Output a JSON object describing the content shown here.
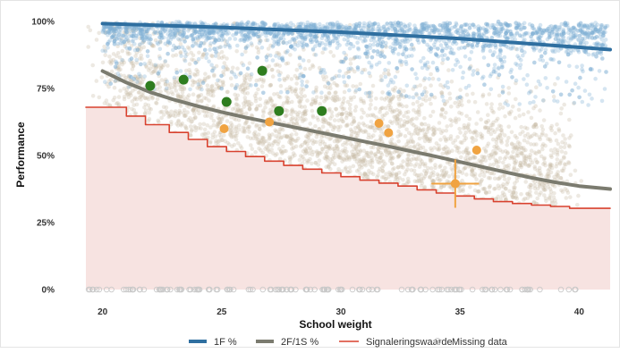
{
  "chart_data": {
    "type": "scatter",
    "title": "",
    "xlabel": "School weight",
    "ylabel": "Performance",
    "xlim": [
      19.3,
      41.3
    ],
    "ylim": [
      0,
      100
    ],
    "x_ticks": [
      20,
      25,
      30,
      35,
      40
    ],
    "y_ticks": [
      0,
      25,
      50,
      75,
      100
    ],
    "x_tick_labels": [
      "20",
      "25",
      "30",
      "35",
      "40"
    ],
    "y_tick_labels": [
      "0%",
      "25%",
      "50%",
      "75%",
      "100%"
    ],
    "grid": false,
    "legend_position": "bottom",
    "colors": {
      "blue": "#2f6fa0",
      "gray": "#7b7b6f",
      "red": "#d8412e",
      "green": "#2e7d1f",
      "orange": "#f0a341",
      "beige_points": "#c7bba4",
      "blue_points": "#7fb1d6",
      "pink_fill": "#f7e3e1"
    },
    "legend": [
      {
        "label": "1F %",
        "type": "line",
        "color": "#2f6fa0"
      },
      {
        "label": "2F/1S %",
        "type": "line",
        "color": "#7b7b6f"
      },
      {
        "label": "Signaleringswaarde",
        "type": "line",
        "color": "#d8412e"
      },
      {
        "label": "Missing data",
        "type": "circle",
        "color": "#cccccc"
      }
    ],
    "series": [
      {
        "name": "1F %",
        "type": "line",
        "color": "#2f6fa0",
        "x": [
          20,
          25,
          30,
          35,
          41.3
        ],
        "y": [
          99.2,
          97.8,
          96.0,
          93.6,
          89.5
        ]
      },
      {
        "name": "2F/1S %",
        "type": "line",
        "color": "#7b7b6f",
        "x": [
          20,
          21,
          22,
          23,
          24,
          25,
          26,
          27,
          28,
          29,
          30,
          31,
          32,
          33,
          34,
          35,
          36,
          37,
          38,
          39,
          40,
          41.3
        ],
        "y": [
          81.5,
          77.2,
          73.6,
          70.8,
          68.4,
          66.2,
          64.2,
          62.4,
          60.6,
          58.8,
          57.0,
          55.2,
          53.4,
          51.5,
          49.6,
          47.6,
          45.6,
          43.6,
          41.7,
          40.0,
          38.6,
          37.5
        ]
      },
      {
        "name": "Signaleringswaarde",
        "type": "step",
        "color": "#d8412e",
        "x": [
          19.3,
          21.0,
          21.0,
          21.8,
          21.8,
          22.8,
          22.8,
          23.6,
          23.6,
          24.4,
          24.4,
          25.2,
          25.2,
          26.0,
          26.0,
          26.8,
          26.8,
          27.6,
          27.6,
          28.4,
          28.4,
          29.2,
          29.2,
          30.0,
          30.0,
          30.8,
          30.8,
          31.6,
          31.6,
          32.4,
          32.4,
          33.2,
          33.2,
          34.0,
          34.0,
          34.8,
          34.8,
          35.6,
          35.6,
          36.4,
          36.4,
          37.2,
          37.2,
          38.0,
          38.0,
          38.8,
          38.8,
          39.6,
          39.6,
          41.3
        ],
        "y": [
          68.0,
          68.0,
          64.7,
          64.7,
          61.5,
          61.5,
          58.6,
          58.6,
          56.0,
          56.0,
          53.3,
          53.3,
          51.5,
          51.5,
          49.6,
          49.6,
          47.9,
          47.9,
          46.3,
          46.3,
          44.9,
          44.9,
          43.5,
          43.5,
          42.1,
          42.1,
          40.8,
          40.8,
          39.7,
          39.7,
          38.6,
          38.6,
          37.2,
          37.2,
          36.0,
          36.0,
          34.9,
          34.9,
          33.8,
          33.8,
          32.8,
          32.8,
          32.1,
          32.1,
          31.5,
          31.5,
          31.0,
          31.0,
          30.3,
          30.3
        ]
      },
      {
        "name": "",
        "type": "scatter",
        "color": "#2e7d1f",
        "x": [
          22.0,
          23.4,
          25.2,
          26.7,
          27.4,
          29.2
        ],
        "y": [
          76.0,
          78.3,
          70.0,
          81.6,
          66.6,
          66.6
        ]
      },
      {
        "name": "",
        "type": "scatter",
        "color": "#f0a341",
        "x": [
          25.1,
          27.0,
          31.6,
          32.0,
          34.8,
          35.7
        ],
        "y": [
          60.0,
          62.5,
          62.0,
          58.5,
          39.5,
          52.0
        ]
      }
    ],
    "highlight_point": {
      "x": 34.8,
      "y": 39.5,
      "x_error": 1.0,
      "y_error": 9.0,
      "color": "#f0a341"
    },
    "background_cloud": {
      "beige_count": 3500,
      "blue_count": 2600
    }
  }
}
